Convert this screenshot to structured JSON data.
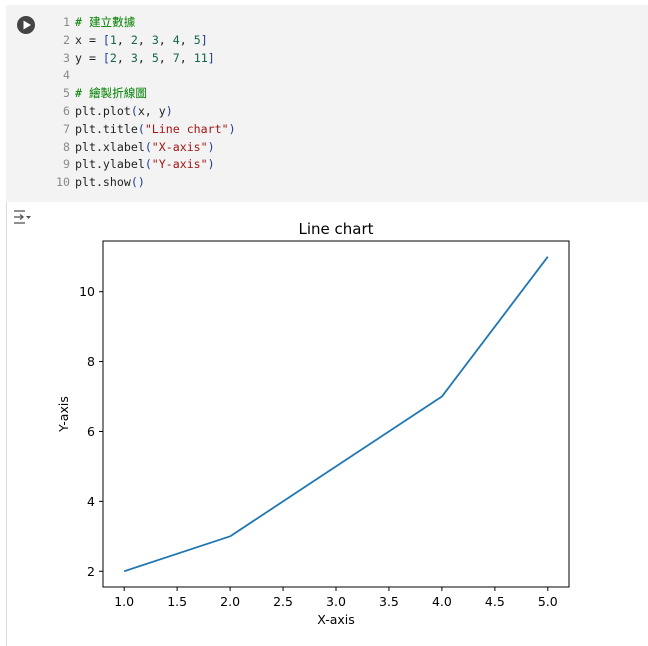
{
  "code_cell": {
    "lines": [
      {
        "n": "1",
        "tokens": [
          {
            "t": "# 建立數據",
            "c": "c-comment"
          }
        ]
      },
      {
        "n": "2",
        "tokens": [
          {
            "t": "x = ",
            "c": "c-default"
          },
          {
            "t": "[",
            "c": "c-paren"
          },
          {
            "t": "1",
            "c": "c-num"
          },
          {
            "t": ", ",
            "c": "c-default"
          },
          {
            "t": "2",
            "c": "c-num"
          },
          {
            "t": ", ",
            "c": "c-default"
          },
          {
            "t": "3",
            "c": "c-num"
          },
          {
            "t": ", ",
            "c": "c-default"
          },
          {
            "t": "4",
            "c": "c-num"
          },
          {
            "t": ", ",
            "c": "c-default"
          },
          {
            "t": "5",
            "c": "c-num"
          },
          {
            "t": "]",
            "c": "c-paren"
          }
        ]
      },
      {
        "n": "3",
        "tokens": [
          {
            "t": "y = ",
            "c": "c-default"
          },
          {
            "t": "[",
            "c": "c-paren"
          },
          {
            "t": "2",
            "c": "c-num"
          },
          {
            "t": ", ",
            "c": "c-default"
          },
          {
            "t": "3",
            "c": "c-num"
          },
          {
            "t": ", ",
            "c": "c-default"
          },
          {
            "t": "5",
            "c": "c-num"
          },
          {
            "t": ", ",
            "c": "c-default"
          },
          {
            "t": "7",
            "c": "c-num"
          },
          {
            "t": ", ",
            "c": "c-default"
          },
          {
            "t": "11",
            "c": "c-num"
          },
          {
            "t": "]",
            "c": "c-paren"
          }
        ]
      },
      {
        "n": "4",
        "tokens": []
      },
      {
        "n": "5",
        "tokens": [
          {
            "t": "# 繪製折線圖",
            "c": "c-comment"
          }
        ]
      },
      {
        "n": "6",
        "tokens": [
          {
            "t": "plt.plot",
            "c": "c-default"
          },
          {
            "t": "(",
            "c": "c-paren"
          },
          {
            "t": "x, y",
            "c": "c-default"
          },
          {
            "t": ")",
            "c": "c-paren"
          }
        ]
      },
      {
        "n": "7",
        "tokens": [
          {
            "t": "plt.title",
            "c": "c-default"
          },
          {
            "t": "(",
            "c": "c-paren"
          },
          {
            "t": "\"Line chart\"",
            "c": "c-str"
          },
          {
            "t": ")",
            "c": "c-paren"
          }
        ]
      },
      {
        "n": "8",
        "tokens": [
          {
            "t": "plt.xlabel",
            "c": "c-default"
          },
          {
            "t": "(",
            "c": "c-paren"
          },
          {
            "t": "\"X-axis\"",
            "c": "c-str"
          },
          {
            "t": ")",
            "c": "c-paren"
          }
        ]
      },
      {
        "n": "9",
        "tokens": [
          {
            "t": "plt.ylabel",
            "c": "c-default"
          },
          {
            "t": "(",
            "c": "c-paren"
          },
          {
            "t": "\"Y-axis\"",
            "c": "c-str"
          },
          {
            "t": ")",
            "c": "c-paren"
          }
        ]
      },
      {
        "n": "10",
        "tokens": [
          {
            "t": "plt.show",
            "c": "c-default"
          },
          {
            "t": "()",
            "c": "c-paren"
          }
        ]
      }
    ]
  },
  "icons": {
    "run": "play-circle-icon",
    "output_toggle": "output-toggle-icon"
  },
  "colors": {
    "line": "#1f77b4",
    "cell_bg": "#f3f3f3"
  },
  "chart_data": {
    "type": "line",
    "title": "Line chart",
    "xlabel": "X-axis",
    "ylabel": "Y-axis",
    "x": [
      1,
      2,
      3,
      4,
      5
    ],
    "series": [
      {
        "values": [
          2,
          3,
          5,
          7,
          11
        ]
      }
    ],
    "xlim": [
      0.8,
      5.2
    ],
    "ylim": [
      1.55,
      11.45
    ],
    "x_ticks": [
      "1.0",
      "1.5",
      "2.0",
      "2.5",
      "3.0",
      "3.5",
      "4.0",
      "4.5",
      "5.0"
    ],
    "y_ticks": [
      "2",
      "4",
      "6",
      "8",
      "10"
    ],
    "grid": false
  }
}
